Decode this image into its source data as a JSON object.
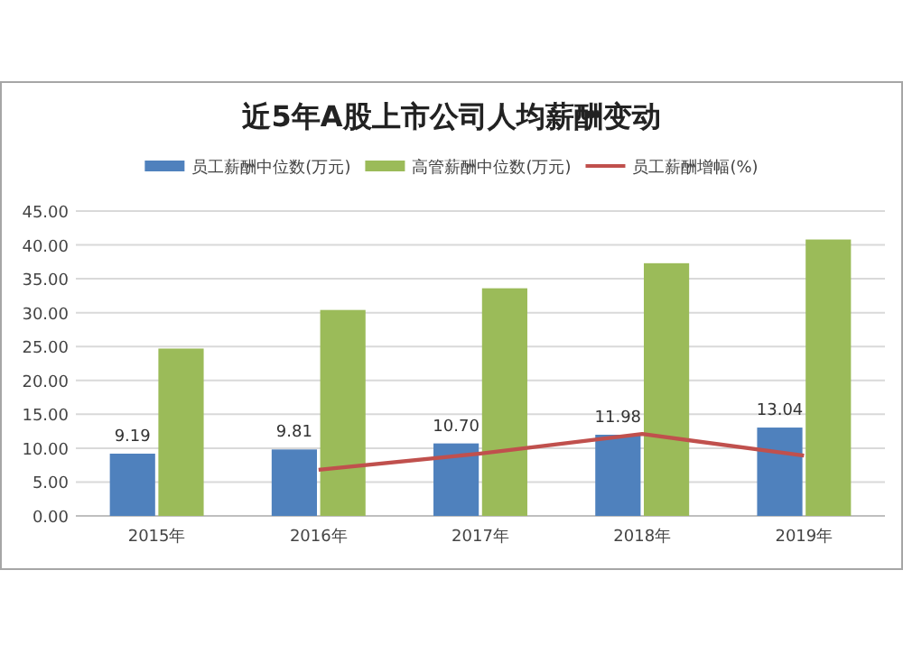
{
  "chart_data": {
    "type": "bar",
    "title": "近5年A股上市公司人均薪酬变动",
    "categories": [
      "2015年",
      "2016年",
      "2017年",
      "2018年",
      "2019年"
    ],
    "series": [
      {
        "name": "员工薪酬中位数(万元)",
        "color": "#4f81bd",
        "values": [
          9.19,
          9.81,
          10.7,
          11.98,
          13.04
        ],
        "value_labels": [
          "9.19",
          "9.81",
          "10.70",
          "11.98",
          "13.04"
        ]
      },
      {
        "name": "高管薪酬中位数(万元)",
        "color": "#9bbb59",
        "values": [
          24.7,
          30.4,
          33.6,
          37.3,
          40.8
        ]
      },
      {
        "name": "员工薪酬增幅(%)",
        "type": "line",
        "color": "#c0504d",
        "values": [
          null,
          6.8,
          9.2,
          12.1,
          8.9
        ]
      }
    ],
    "ylim": [
      0,
      45
    ],
    "yticks": [
      {
        "value": 0,
        "label": "0.00"
      },
      {
        "value": 5,
        "label": "5.00"
      },
      {
        "value": 10,
        "label": "10.00"
      },
      {
        "value": 15,
        "label": "15.00"
      },
      {
        "value": 20,
        "label": "20.00"
      },
      {
        "value": 25,
        "label": "25.00"
      },
      {
        "value": 30,
        "label": "30.00"
      },
      {
        "value": 35,
        "label": "35.00"
      },
      {
        "value": 40,
        "label": "40.00"
      },
      {
        "value": 45,
        "label": "45.00"
      }
    ],
    "grid": "y",
    "legend": "top",
    "marker": "none"
  }
}
